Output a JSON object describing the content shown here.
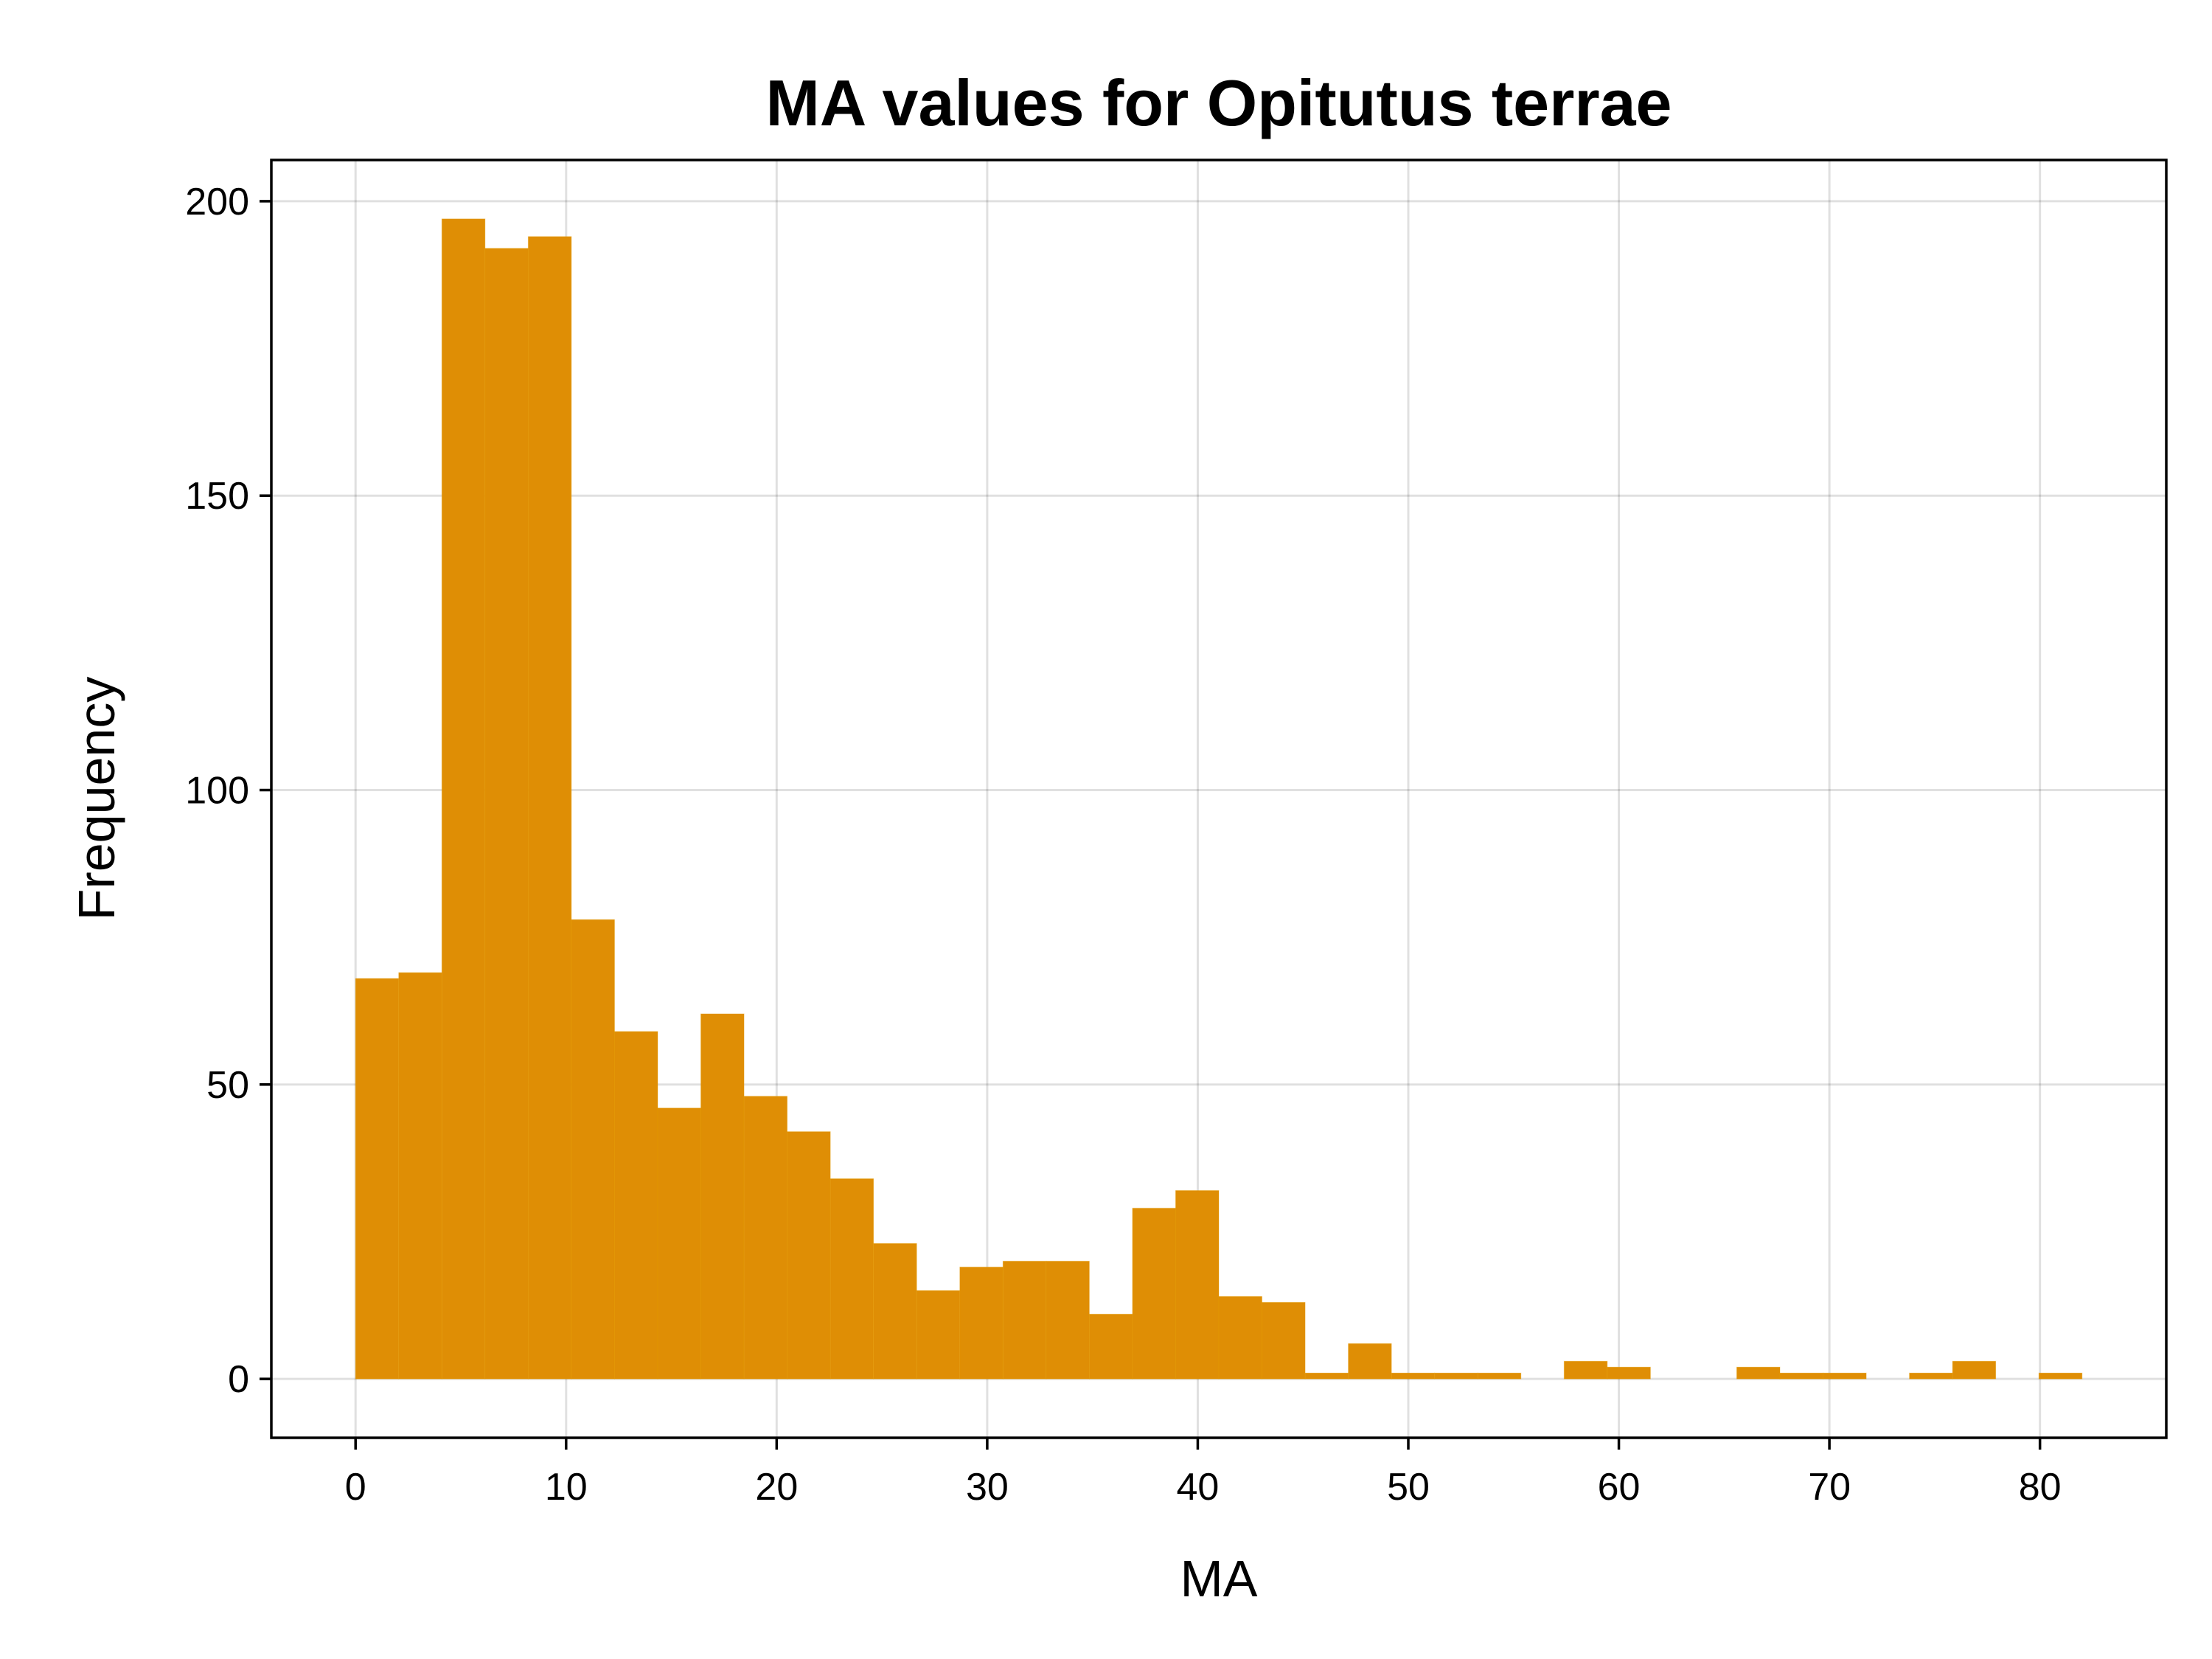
{
  "chart_data": {
    "type": "bar",
    "title": "MA values for Opitutus terrae",
    "xlabel": "MA",
    "ylabel": "Frequency",
    "xlim": [
      -4,
      86
    ],
    "ylim": [
      -10,
      207
    ],
    "x_ticks": [
      0,
      10,
      20,
      30,
      40,
      50,
      60,
      70,
      80
    ],
    "y_ticks": [
      0,
      50,
      100,
      150,
      200
    ],
    "grid": true,
    "bar_color": "#df8e05",
    "bin_width": 2.05,
    "bin_start": 0,
    "values": [
      68,
      69,
      197,
      192,
      194,
      78,
      59,
      46,
      62,
      48,
      42,
      34,
      23,
      15,
      19,
      20,
      20,
      11,
      29,
      32,
      14,
      13,
      1,
      6,
      1,
      1,
      1,
      0,
      3,
      2,
      0,
      0,
      2,
      1,
      1,
      0,
      1,
      3,
      0,
      1
    ]
  }
}
